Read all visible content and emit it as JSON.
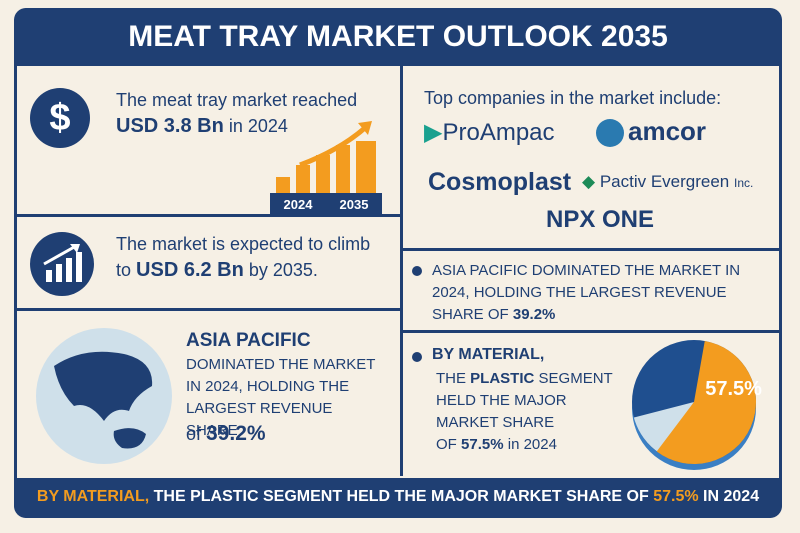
{
  "header": {
    "title": "MEAT TRAY MARKET OUTLOOK 2035"
  },
  "market_2024": {
    "icon": "$",
    "line1": "The meat tray market reached",
    "value": "USD 3.8 Bn",
    "suffix": "in 2024",
    "bar_labels": [
      "2024",
      "2035"
    ]
  },
  "market_2035": {
    "line1": "The market is expected to climb",
    "prefix": "to",
    "value": "USD 6.2 Bn",
    "suffix": "by 2035."
  },
  "region_left": {
    "heading": "ASIA PACIFIC",
    "text": "DOMINATED THE MARKET IN 2024, HOLDING THE LARGEST REVENUE SHARE",
    "of": "of",
    "share": "39.2%"
  },
  "companies": {
    "heading": "Top companies in the market include:",
    "logos": [
      "ProAmpac",
      "amcor",
      "Cosmoplast",
      "Pactiv Evergreen",
      "NPX ONE"
    ],
    "pactiv_suffix": "Inc."
  },
  "region_right": {
    "text": "ASIA PACIFIC DOMINATED THE MARKET IN 2024, HOLDING THE LARGEST REVENUE SHARE OF",
    "share": "39.2%"
  },
  "material": {
    "heading": "BY MATERIAL,",
    "text_a": "THE",
    "segment": "PLASTIC",
    "text_b": "SEGMENT HELD THE MAJOR MARKET SHARE",
    "of": "OF",
    "share": "57.5%",
    "suffix": "in 2024",
    "pie": {
      "values": [
        57.5
      ],
      "value_labels": [
        "57.5%"
      ]
    }
  },
  "footer": {
    "lead": "BY MATERIAL,",
    "text": "THE PLASTIC SEGMENT HELD THE MAJOR MARKET SHARE OF",
    "share": "57.5%",
    "suffix": "IN 2024"
  }
}
